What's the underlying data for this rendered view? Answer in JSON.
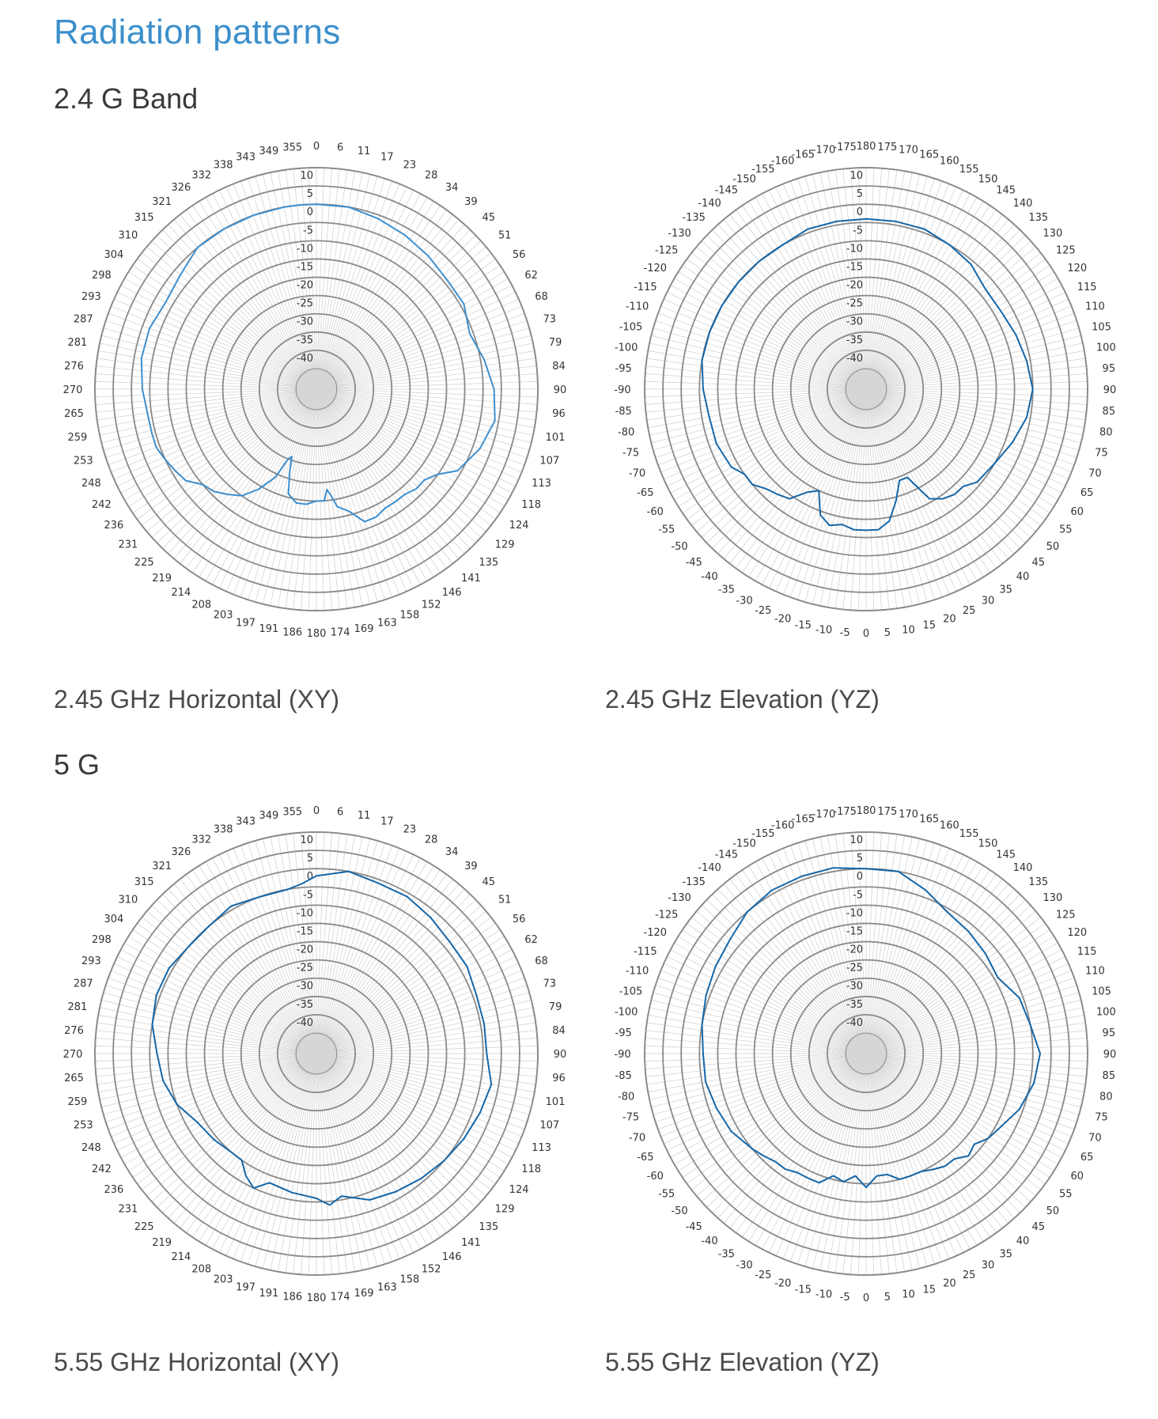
{
  "page": {
    "title": "Radiation patterns",
    "sections": [
      {
        "title": "2.4 G Band"
      },
      {
        "title": "5 G"
      }
    ]
  },
  "colors": {
    "title": "#3b8fcb",
    "series_light": "#3d8fcf",
    "series_dark": "#1466a8",
    "ring": "#8a8a8a",
    "spoke": "#cfcfcf",
    "center_fill": "#d6d6d6"
  },
  "chart_data": [
    {
      "type": "polar",
      "caption": "2.45 GHz Horizontal (XY)",
      "r_ticks": [
        -40,
        -35,
        -30,
        -25,
        -20,
        -15,
        -10,
        -5,
        0,
        5,
        10
      ],
      "rlim": [
        -45,
        10
      ],
      "angle_labels": [
        "0",
        "6",
        "11",
        "17",
        "23",
        "28",
        "34",
        "39",
        "45",
        "51",
        "56",
        "62",
        "68",
        "73",
        "79",
        "84",
        "90",
        "96",
        "101",
        "107",
        "113",
        "118",
        "124",
        "129",
        "135",
        "141",
        "146",
        "152",
        "158",
        "163",
        "169",
        "174",
        "180",
        "186",
        "191",
        "197",
        "203",
        "208",
        "214",
        "219",
        "225",
        "231",
        "236",
        "242",
        "248",
        "253",
        "259",
        "265",
        "270",
        "276",
        "281",
        "287",
        "293",
        "298",
        "304",
        "310",
        "315",
        "321",
        "326",
        "332",
        "338",
        "343",
        "349",
        "355"
      ],
      "series": [
        {
          "color": "light",
          "theta": [
            0,
            10,
            20,
            30,
            40,
            50,
            60,
            70,
            80,
            90,
            100,
            110,
            120,
            125,
            130,
            135,
            140,
            145,
            150,
            155,
            160,
            165,
            170,
            172,
            174,
            176,
            180,
            185,
            190,
            195,
            198,
            200,
            202,
            205,
            210,
            215,
            220,
            225,
            230,
            235,
            240,
            245,
            250,
            255,
            260,
            270,
            280,
            290,
            300,
            310,
            320,
            330,
            340,
            350,
            355
          ],
          "r": [
            0,
            0,
            -1,
            -2,
            -3,
            -4,
            -4,
            -6,
            -4,
            -2,
            -1,
            -3,
            -6,
            -10,
            -12,
            -12,
            -13,
            -13,
            -13,
            -12,
            -12,
            -16,
            -18,
            -21,
            -23,
            -20,
            -20,
            -19,
            -19,
            -21,
            -27,
            -31,
            -30,
            -24,
            -19,
            -15,
            -13,
            -11,
            -10,
            -7,
            -6,
            -5,
            -4,
            -4,
            -4,
            -3,
            -2,
            -2,
            -3,
            -2,
            0,
            0,
            0,
            0,
            0
          ]
        }
      ]
    },
    {
      "type": "polar",
      "caption": "2.45 GHz Elevation (YZ)",
      "r_ticks": [
        -40,
        -35,
        -30,
        -25,
        -20,
        -15,
        -10,
        -5,
        0,
        5,
        10
      ],
      "rlim": [
        -45,
        10
      ],
      "angle_labels": [
        "180",
        "175",
        "170",
        "165",
        "160",
        "155",
        "150",
        "145",
        "140",
        "135",
        "130",
        "125",
        "120",
        "115",
        "110",
        "105",
        "100",
        "95",
        "90",
        "85",
        "80",
        "75",
        "70",
        "65",
        "60",
        "55",
        "50",
        "45",
        "40",
        "35",
        "30",
        "25",
        "20",
        "15",
        "10",
        "5",
        "0",
        "-5",
        "-10",
        "-15",
        "-20",
        "-25",
        "-30",
        "-35",
        "-40",
        "-45",
        "-50",
        "-55",
        "-60",
        "-65",
        "-70",
        "-75",
        "-80",
        "-85",
        "-90",
        "-95",
        "-100",
        "-105",
        "-110",
        "-115",
        "-120",
        "-125",
        "-130",
        "-135",
        "-140",
        "-145",
        "-150",
        "-155",
        "-160",
        "-165",
        "-170",
        "-175"
      ],
      "series": [
        {
          "color": "dark",
          "theta": [
            180,
            170,
            160,
            150,
            140,
            130,
            120,
            110,
            100,
            90,
            80,
            70,
            60,
            50,
            45,
            40,
            35,
            30,
            25,
            20,
            15,
            10,
            5,
            0,
            -5,
            -10,
            -15,
            -20,
            -25,
            -30,
            -35,
            -40,
            -45,
            -50,
            -55,
            -60,
            -70,
            -80,
            -90,
            -100,
            -110,
            -120,
            -130,
            -140,
            -150,
            -160,
            -170
          ],
          "r": [
            -4,
            -4,
            -4,
            -5,
            -6,
            -8,
            -8,
            -7,
            -6,
            -5,
            -6,
            -8,
            -10,
            -11,
            -13,
            -13,
            -14,
            -16,
            -24,
            -24,
            -19,
            -14,
            -12,
            -12,
            -12,
            -13,
            -12,
            -14,
            -20,
            -18,
            -14,
            -13,
            -12,
            -10,
            -10,
            -8,
            -7,
            -7,
            -6,
            -5,
            -5,
            -5,
            -5,
            -5,
            -5,
            -4,
            -4
          ]
        }
      ]
    },
    {
      "type": "polar",
      "caption": "5.55 GHz Horizontal (XY)",
      "r_ticks": [
        -40,
        -35,
        -30,
        -25,
        -20,
        -15,
        -10,
        -5,
        0,
        5,
        10
      ],
      "rlim": [
        -45,
        10
      ],
      "angle_labels": [
        "0",
        "6",
        "11",
        "17",
        "23",
        "28",
        "34",
        "39",
        "45",
        "51",
        "56",
        "62",
        "68",
        "73",
        "79",
        "84",
        "90",
        "96",
        "101",
        "107",
        "113",
        "118",
        "124",
        "129",
        "135",
        "141",
        "146",
        "152",
        "158",
        "163",
        "169",
        "174",
        "180",
        "186",
        "191",
        "197",
        "203",
        "208",
        "214",
        "219",
        "225",
        "231",
        "236",
        "242",
        "248",
        "253",
        "259",
        "265",
        "270",
        "276",
        "281",
        "287",
        "293",
        "298",
        "304",
        "310",
        "315",
        "321",
        "326",
        "332",
        "338",
        "343",
        "349",
        "355"
      ],
      "series": [
        {
          "color": "dark",
          "theta": [
            0,
            10,
            20,
            30,
            40,
            50,
            60,
            70,
            80,
            90,
            100,
            110,
            120,
            130,
            140,
            150,
            160,
            170,
            175,
            180,
            190,
            200,
            205,
            210,
            215,
            220,
            230,
            240,
            250,
            260,
            270,
            280,
            290,
            300,
            310,
            320,
            330,
            340,
            350,
            355
          ],
          "r": [
            -2,
            0,
            -1,
            -1,
            -2,
            -3,
            -3,
            -4,
            -4,
            -4,
            -2,
            -3,
            -4,
            -5,
            -6,
            -7,
            -8,
            -11,
            -9,
            -11,
            -12,
            -13,
            -10,
            -12,
            -15,
            -15,
            -14,
            -13,
            -10,
            -8,
            -7,
            -5,
            -4,
            -4,
            -5,
            -5,
            -4,
            -5,
            -5,
            -4
          ]
        }
      ]
    },
    {
      "type": "polar",
      "caption": "5.55 GHz Elevation (YZ)",
      "r_ticks": [
        -40,
        -35,
        -30,
        -25,
        -20,
        -15,
        -10,
        -5,
        0,
        5,
        10
      ],
      "rlim": [
        -45,
        10
      ],
      "angle_labels": [
        "180",
        "175",
        "170",
        "165",
        "160",
        "155",
        "150",
        "145",
        "140",
        "135",
        "130",
        "125",
        "120",
        "115",
        "110",
        "105",
        "100",
        "95",
        "90",
        "85",
        "80",
        "75",
        "70",
        "65",
        "60",
        "55",
        "50",
        "45",
        "40",
        "35",
        "30",
        "25",
        "20",
        "15",
        "10",
        "5",
        "0",
        "-5",
        "-10",
        "-15",
        "-20",
        "-25",
        "-30",
        "-35",
        "-40",
        "-45",
        "-50",
        "-55",
        "-60",
        "-65",
        "-70",
        "-75",
        "-80",
        "-85",
        "-90",
        "-95",
        "-100",
        "-105",
        "-110",
        "-115",
        "-120",
        "-125",
        "-130",
        "-135",
        "-140",
        "-145",
        "-150",
        "-155",
        "-160",
        "-165",
        "-170",
        "-175"
      ],
      "series": [
        {
          "color": "dark",
          "theta": [
            180,
            170,
            160,
            150,
            140,
            130,
            120,
            110,
            100,
            90,
            80,
            70,
            60,
            55,
            50,
            45,
            40,
            35,
            30,
            25,
            20,
            15,
            10,
            5,
            0,
            -5,
            -10,
            -15,
            -20,
            -25,
            -30,
            -35,
            -40,
            -45,
            -50,
            -60,
            -70,
            -80,
            -90,
            -100,
            -110,
            -120,
            -130,
            -140,
            -150,
            -160,
            -170
          ],
          "r": [
            0,
            0,
            -3,
            -6,
            -7,
            -8,
            -9,
            -6,
            -5,
            -3,
            -4,
            -6,
            -9,
            -10,
            -12,
            -11,
            -13,
            -13,
            -14,
            -15,
            -15,
            -15,
            -17,
            -17,
            -14,
            -17,
            -15,
            -16,
            -13,
            -13,
            -13,
            -12,
            -12,
            -11,
            -10,
            -8,
            -7,
            -6,
            -6,
            -5,
            -4,
            -3,
            -2,
            0,
            1,
            1,
            1
          ]
        }
      ]
    }
  ]
}
